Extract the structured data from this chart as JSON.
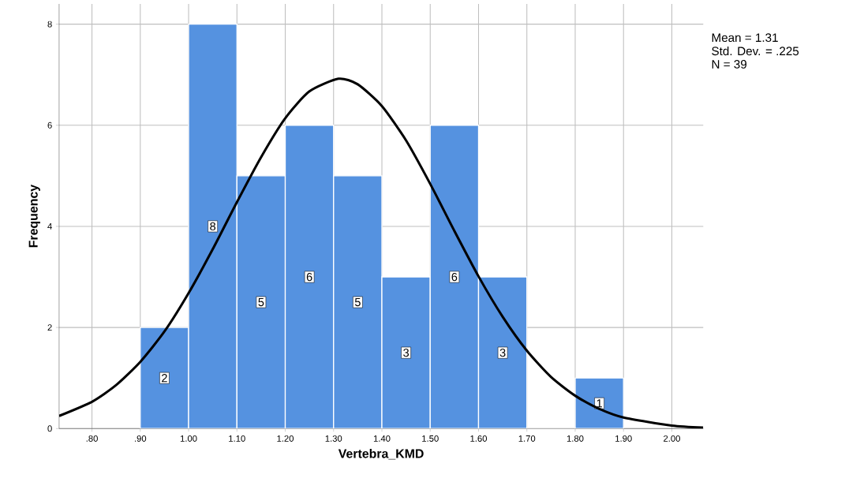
{
  "chart_data": {
    "type": "histogram",
    "xlabel": "Vertebra_KMD",
    "ylabel": "Frequency",
    "bins": [
      0.9,
      1.0,
      1.1,
      1.2,
      1.3,
      1.4,
      1.5,
      1.6,
      1.7,
      1.8,
      1.9
    ],
    "values": [
      2,
      8,
      5,
      6,
      5,
      3,
      6,
      3,
      0,
      1
    ],
    "value_labels": [
      "2",
      "8",
      "5",
      "6",
      "5",
      "3",
      "6",
      "3",
      null,
      "1"
    ],
    "color": "#5592e0",
    "series": [
      {
        "type": "line",
        "color": "#000000",
        "x": [
          0.732,
          0.8,
          0.85,
          0.9,
          0.95,
          1.0,
          1.05,
          1.1,
          1.15,
          1.2,
          1.25,
          1.31,
          1.35,
          1.4,
          1.45,
          1.5,
          1.55,
          1.6,
          1.65,
          1.7,
          1.75,
          1.8,
          1.85,
          1.9,
          2.0,
          2.065
        ],
        "values": [
          0.25,
          0.53,
          0.86,
          1.32,
          1.92,
          2.68,
          3.55,
          4.48,
          5.37,
          6.14,
          6.67,
          6.92,
          6.81,
          6.38,
          5.7,
          4.84,
          3.91,
          3.01,
          2.21,
          1.54,
          1.02,
          0.65,
          0.39,
          0.22,
          0.06,
          0.02
        ]
      }
    ],
    "xlim": [
      0.732,
      2.065
    ],
    "ylim": [
      0,
      8.4
    ],
    "xticks": [
      {
        "value": 0.8,
        "label": ".80"
      },
      {
        "value": 0.9,
        "label": ".90"
      },
      {
        "value": 1.0,
        "label": "1.00"
      },
      {
        "value": 1.1,
        "label": "1.10"
      },
      {
        "value": 1.2,
        "label": "1.20"
      },
      {
        "value": 1.3,
        "label": "1.30"
      },
      {
        "value": 1.4,
        "label": "1.40"
      },
      {
        "value": 1.5,
        "label": "1.50"
      },
      {
        "value": 1.6,
        "label": "1.60"
      },
      {
        "value": 1.7,
        "label": "1.70"
      },
      {
        "value": 1.8,
        "label": "1.80"
      },
      {
        "value": 1.9,
        "label": "1.90"
      },
      {
        "value": 2.0,
        "label": "2.00"
      }
    ],
    "yticks": [
      0,
      2,
      4,
      6,
      8
    ],
    "grid": true,
    "annotations": [
      "Mean = 1.31",
      "Std. Dev. = .225",
      "N = 39"
    ]
  }
}
